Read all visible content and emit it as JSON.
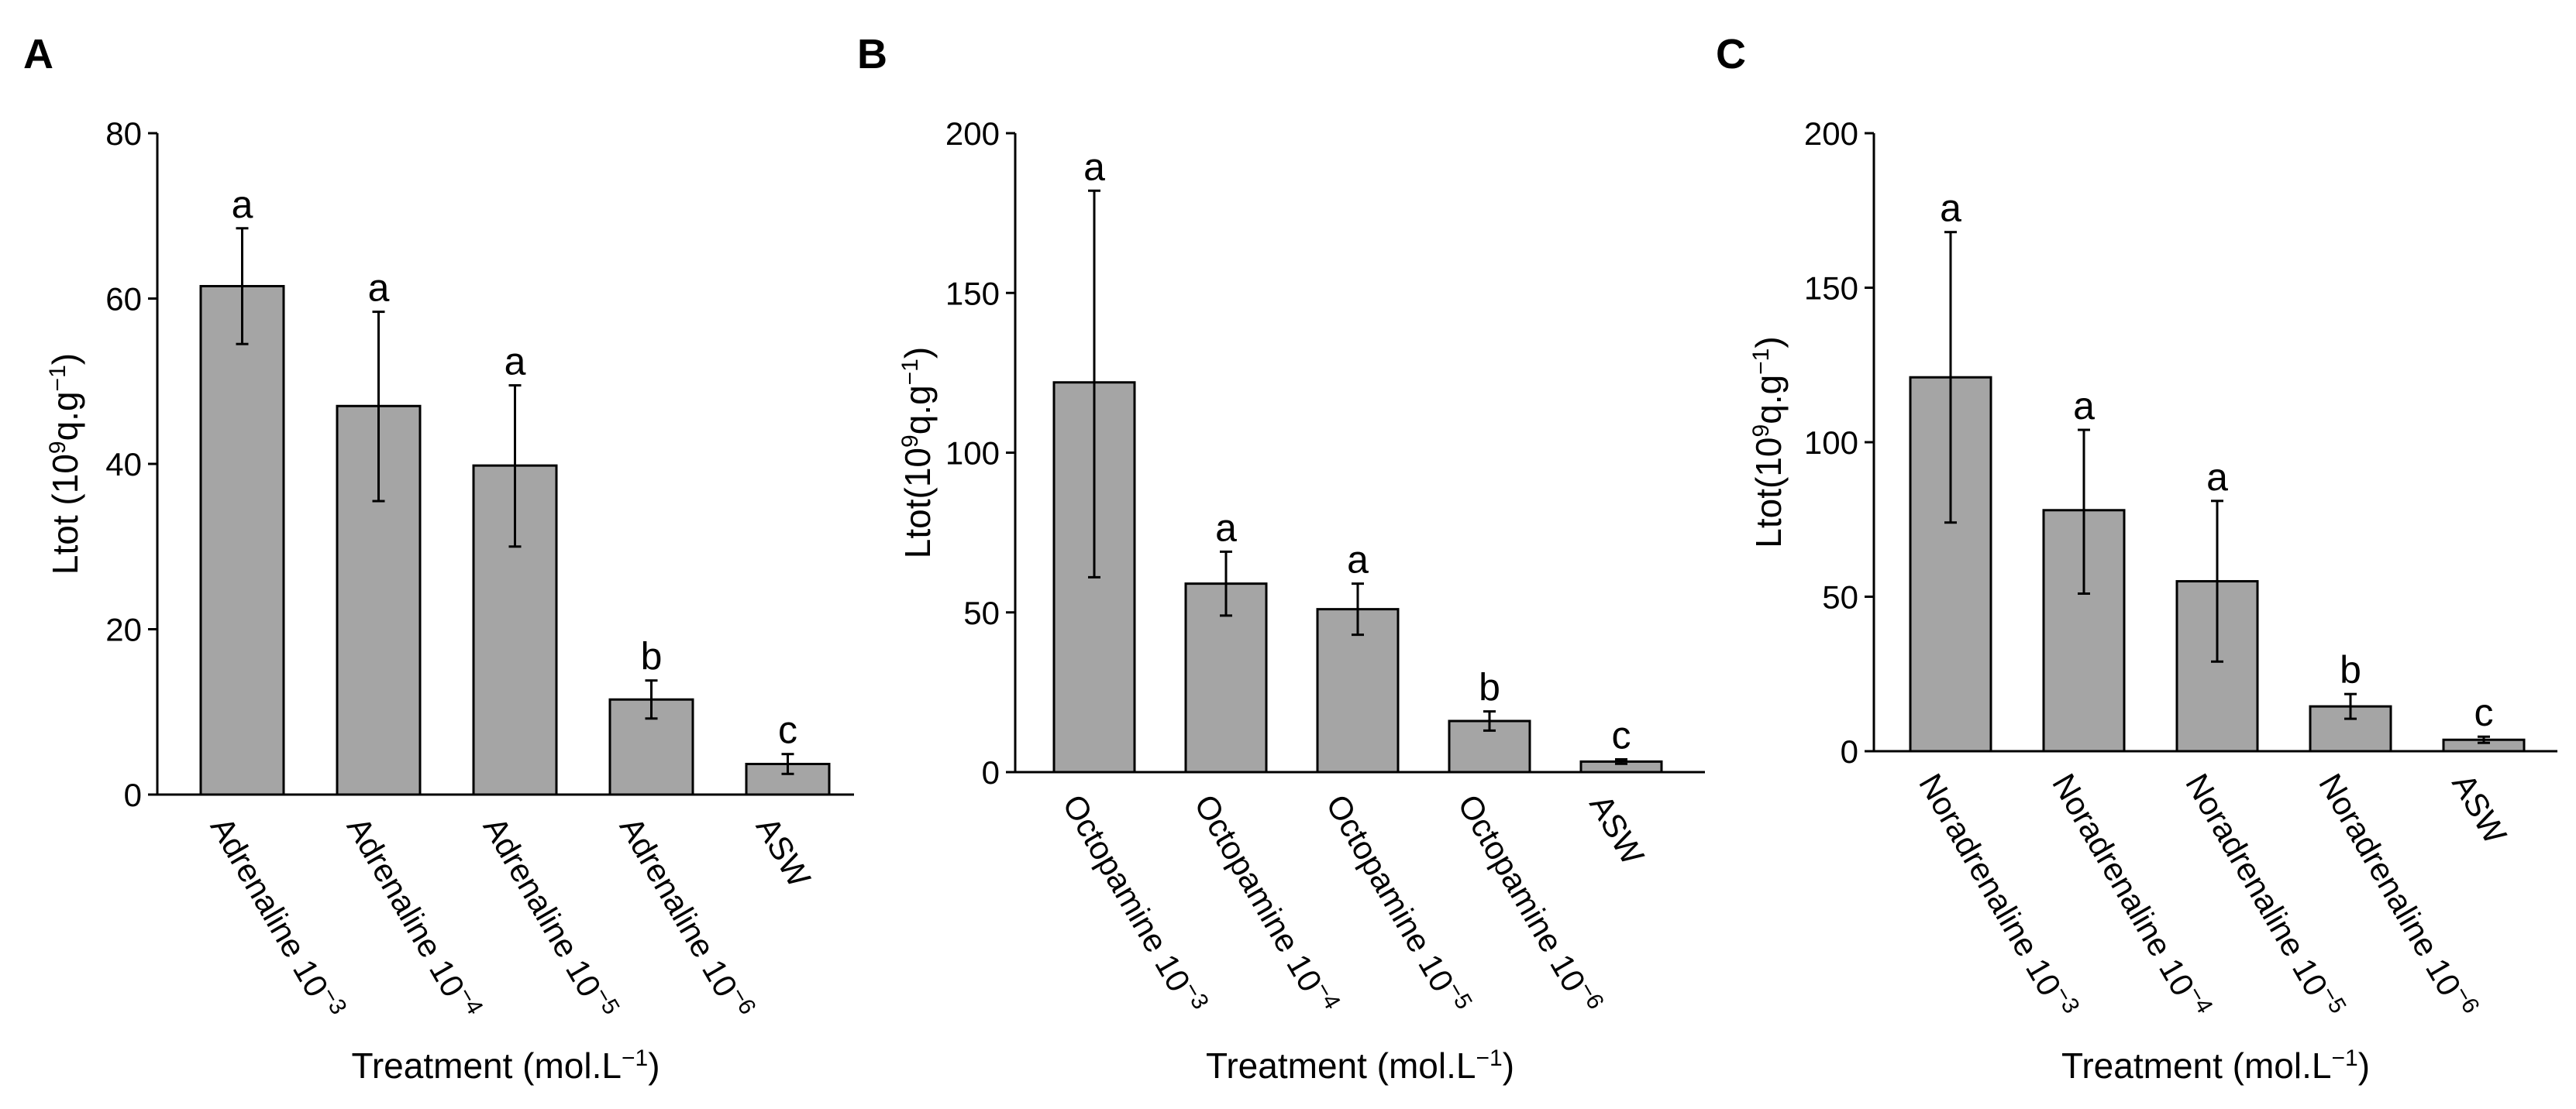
{
  "chart_data": [
    {
      "panel": "A",
      "type": "bar",
      "categories": [
        {
          "name": "Adrenaline",
          "power": "−3"
        },
        {
          "name": "Adrenaline",
          "power": "−4"
        },
        {
          "name": "Adrenaline",
          "power": "−5"
        },
        {
          "name": "Adrenaline",
          "power": "−6"
        },
        {
          "name": "ASW",
          "power": ""
        }
      ],
      "values": [
        61.5,
        47.0,
        39.8,
        11.5,
        3.7
      ],
      "error_low": [
        54.5,
        35.5,
        30.0,
        9.2,
        2.5
      ],
      "error_high": [
        68.5,
        58.4,
        49.5,
        13.8,
        4.9
      ],
      "significance": [
        "a",
        "a",
        "a",
        "b",
        "c"
      ],
      "ylim": [
        0,
        80
      ],
      "yticks": [
        0,
        20,
        40,
        60,
        80
      ],
      "ylabel": {
        "pre": "Ltot (10",
        "sup1": "9",
        "mid": "q.g",
        "sup2": "−1",
        "post": ")"
      },
      "xlabel": {
        "pre": "Treatment (mol.L",
        "sup": "−1",
        "post": ")"
      }
    },
    {
      "panel": "B",
      "type": "bar",
      "categories": [
        {
          "name": "Octopamine",
          "power": "−3"
        },
        {
          "name": "Octopamine",
          "power": "−4"
        },
        {
          "name": "Octopamine",
          "power": "−5"
        },
        {
          "name": "Octopamine",
          "power": "−6"
        },
        {
          "name": "ASW",
          "power": ""
        }
      ],
      "values": [
        122,
        59,
        51,
        16,
        3.3
      ],
      "error_low": [
        61,
        49,
        43,
        13,
        2.6
      ],
      "error_high": [
        182,
        69,
        59,
        19,
        4.0
      ],
      "significance": [
        "a",
        "a",
        "a",
        "b",
        "c"
      ],
      "ylim": [
        0,
        200
      ],
      "yticks": [
        0,
        50,
        100,
        150,
        200
      ],
      "ylabel": {
        "pre": "Ltot(10",
        "sup1": "9",
        "mid": "q.g",
        "sup2": "−1",
        "post": ")"
      },
      "xlabel": {
        "pre": "Treatment (mol.L",
        "sup": "−1",
        "post": ")"
      }
    },
    {
      "panel": "C",
      "type": "bar",
      "categories": [
        {
          "name": "Noradrenaline",
          "power": "−3"
        },
        {
          "name": "Noradrenaline",
          "power": "−4"
        },
        {
          "name": "Noradrenaline",
          "power": "−5"
        },
        {
          "name": "Noradrenaline",
          "power": "−6"
        },
        {
          "name": "ASW",
          "power": ""
        }
      ],
      "values": [
        121,
        78,
        55,
        14.5,
        3.7
      ],
      "error_low": [
        74,
        51,
        29,
        10.5,
        2.7
      ],
      "error_high": [
        168,
        104,
        81,
        18.5,
        4.7
      ],
      "significance": [
        "a",
        "a",
        "a",
        "b",
        "c"
      ],
      "ylim": [
        0,
        200
      ],
      "yticks": [
        0,
        50,
        100,
        150,
        200
      ],
      "ylabel": {
        "pre": "Ltot(10",
        "sup1": "9",
        "mid": "q.g",
        "sup2": "−1",
        "post": ")"
      },
      "xlabel": {
        "pre": "Treatment (mol.L",
        "sup": "−1",
        "post": ")"
      }
    }
  ]
}
